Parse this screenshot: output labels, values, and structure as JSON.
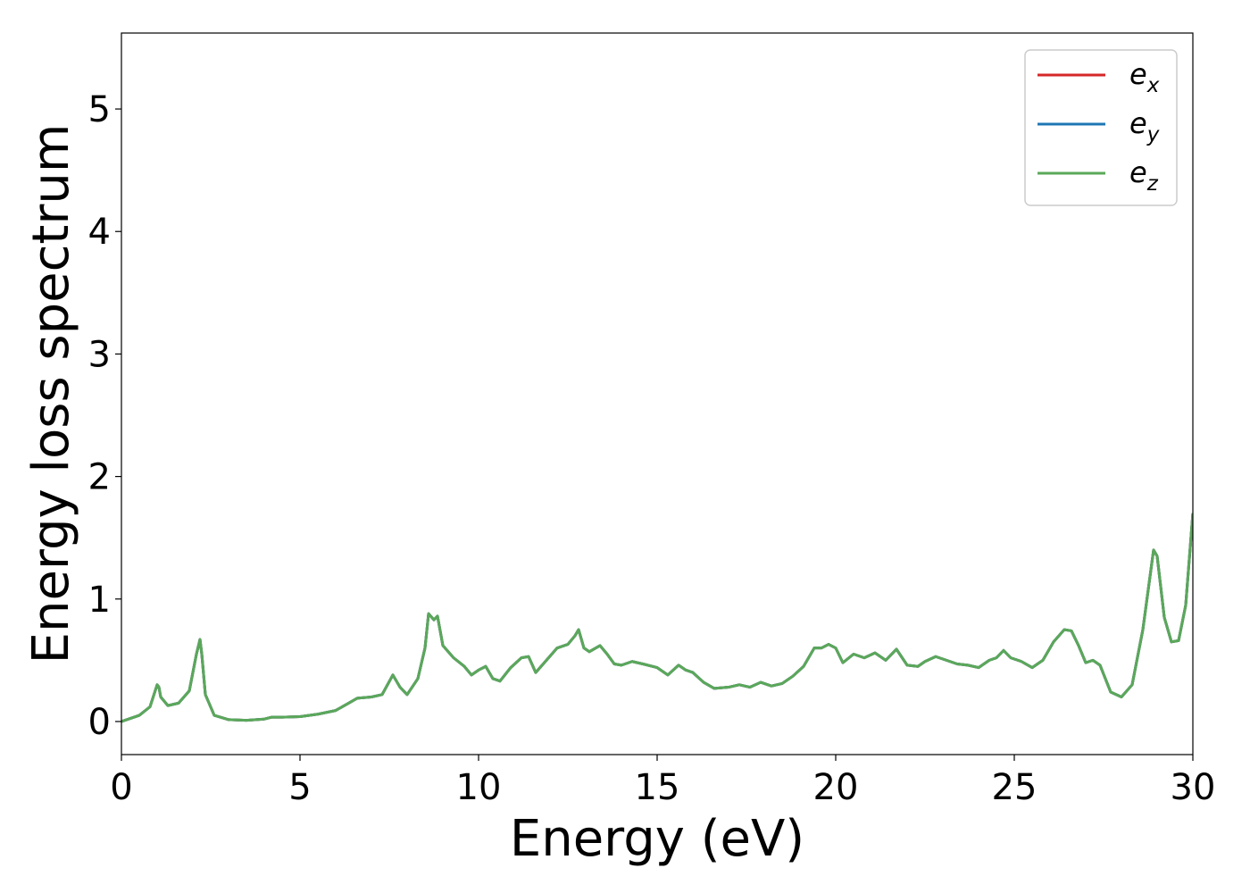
{
  "chart_data": {
    "type": "line",
    "title": "",
    "xlabel": "Energy (eV)",
    "ylabel": "Energy loss spectrum",
    "xlim": [
      0,
      30
    ],
    "ylim": [
      -0.27,
      5.62
    ],
    "xticks": [
      0,
      5,
      10,
      15,
      20,
      25,
      30
    ],
    "yticks": [
      0,
      1,
      2,
      3,
      4,
      5
    ],
    "grid": false,
    "legend_position": "top-right",
    "x": [
      0,
      0.5,
      0.8,
      1.0,
      1.05,
      1.1,
      1.3,
      1.6,
      1.9,
      2.1,
      2.2,
      2.25,
      2.35,
      2.6,
      3.0,
      3.5,
      4.0,
      4.2,
      4.5,
      5.0,
      5.5,
      6.0,
      6.3,
      6.6,
      7.0,
      7.3,
      7.6,
      7.8,
      8.0,
      8.3,
      8.5,
      8.6,
      8.75,
      8.85,
      9.0,
      9.3,
      9.6,
      9.8,
      10.0,
      10.2,
      10.4,
      10.6,
      10.9,
      11.2,
      11.4,
      11.6,
      11.9,
      12.2,
      12.5,
      12.7,
      12.8,
      12.95,
      13.1,
      13.4,
      13.6,
      13.8,
      14.0,
      14.3,
      14.6,
      15.0,
      15.3,
      15.6,
      15.8,
      16.0,
      16.3,
      16.6,
      17.0,
      17.3,
      17.6,
      17.9,
      18.2,
      18.5,
      18.8,
      19.1,
      19.4,
      19.6,
      19.8,
      20.0,
      20.2,
      20.5,
      20.8,
      21.1,
      21.4,
      21.7,
      22.0,
      22.3,
      22.5,
      22.8,
      23.1,
      23.4,
      23.7,
      24.0,
      24.3,
      24.5,
      24.7,
      24.9,
      25.2,
      25.5,
      25.8,
      26.1,
      26.4,
      26.6,
      26.8,
      27.0,
      27.2,
      27.4,
      27.7,
      28.0,
      28.3,
      28.6,
      28.9,
      29.0,
      29.2,
      29.4,
      29.6,
      29.8,
      30.0
    ],
    "series": [
      {
        "name": "e_x",
        "label_base": "e",
        "label_sub": "x",
        "color": "#d62728",
        "values": [
          0.0,
          0.05,
          0.12,
          0.3,
          0.28,
          0.2,
          0.13,
          0.15,
          0.25,
          0.55,
          0.67,
          0.55,
          0.22,
          0.05,
          0.015,
          0.01,
          0.02,
          0.035,
          0.035,
          0.04,
          0.06,
          0.09,
          0.14,
          0.19,
          0.2,
          0.22,
          0.38,
          0.28,
          0.22,
          0.35,
          0.6,
          0.88,
          0.83,
          0.86,
          0.62,
          0.52,
          0.45,
          0.38,
          0.42,
          0.45,
          0.35,
          0.33,
          0.44,
          0.52,
          0.53,
          0.4,
          0.5,
          0.6,
          0.63,
          0.7,
          0.75,
          0.6,
          0.57,
          0.62,
          0.55,
          0.47,
          0.46,
          0.49,
          0.47,
          0.44,
          0.38,
          0.46,
          0.42,
          0.4,
          0.32,
          0.27,
          0.28,
          0.3,
          0.28,
          0.32,
          0.29,
          0.31,
          0.37,
          0.45,
          0.6,
          0.6,
          0.63,
          0.6,
          0.48,
          0.55,
          0.52,
          0.56,
          0.5,
          0.59,
          0.46,
          0.45,
          0.49,
          0.53,
          0.5,
          0.47,
          0.46,
          0.44,
          0.5,
          0.52,
          0.58,
          0.52,
          0.49,
          0.44,
          0.5,
          0.65,
          0.75,
          0.74,
          0.62,
          0.48,
          0.5,
          0.46,
          0.24,
          0.2,
          0.3,
          0.75,
          1.4,
          1.35,
          0.85,
          0.65,
          0.66,
          0.95,
          1.7
        ]
      },
      {
        "name": "e_y",
        "label_base": "e",
        "label_sub": "y",
        "color": "#1f77b4",
        "values": [
          0.0,
          0.05,
          0.12,
          0.3,
          0.28,
          0.2,
          0.13,
          0.15,
          0.25,
          0.55,
          0.67,
          0.55,
          0.22,
          0.05,
          0.015,
          0.01,
          0.02,
          0.035,
          0.035,
          0.04,
          0.06,
          0.09,
          0.14,
          0.19,
          0.2,
          0.22,
          0.38,
          0.28,
          0.22,
          0.35,
          0.6,
          0.88,
          0.83,
          0.86,
          0.62,
          0.52,
          0.45,
          0.38,
          0.42,
          0.45,
          0.35,
          0.33,
          0.44,
          0.52,
          0.53,
          0.4,
          0.5,
          0.6,
          0.63,
          0.7,
          0.75,
          0.6,
          0.57,
          0.62,
          0.55,
          0.47,
          0.46,
          0.49,
          0.47,
          0.44,
          0.38,
          0.46,
          0.42,
          0.4,
          0.32,
          0.27,
          0.28,
          0.3,
          0.28,
          0.32,
          0.29,
          0.31,
          0.37,
          0.45,
          0.6,
          0.6,
          0.63,
          0.6,
          0.48,
          0.55,
          0.52,
          0.56,
          0.5,
          0.59,
          0.46,
          0.45,
          0.49,
          0.53,
          0.5,
          0.47,
          0.46,
          0.44,
          0.5,
          0.52,
          0.58,
          0.52,
          0.49,
          0.44,
          0.5,
          0.65,
          0.75,
          0.74,
          0.62,
          0.48,
          0.5,
          0.46,
          0.24,
          0.2,
          0.3,
          0.75,
          1.4,
          1.35,
          0.85,
          0.65,
          0.66,
          0.95,
          1.7
        ]
      },
      {
        "name": "e_z",
        "label_base": "e",
        "label_sub": "z",
        "color": "#5aa85a",
        "values": [
          0.0,
          0.05,
          0.12,
          0.3,
          0.28,
          0.2,
          0.13,
          0.15,
          0.25,
          0.55,
          0.67,
          0.55,
          0.22,
          0.05,
          0.015,
          0.01,
          0.02,
          0.035,
          0.035,
          0.04,
          0.06,
          0.09,
          0.14,
          0.19,
          0.2,
          0.22,
          0.38,
          0.28,
          0.22,
          0.35,
          0.6,
          0.88,
          0.83,
          0.86,
          0.62,
          0.52,
          0.45,
          0.38,
          0.42,
          0.45,
          0.35,
          0.33,
          0.44,
          0.52,
          0.53,
          0.4,
          0.5,
          0.6,
          0.63,
          0.7,
          0.75,
          0.6,
          0.57,
          0.62,
          0.55,
          0.47,
          0.46,
          0.49,
          0.47,
          0.44,
          0.38,
          0.46,
          0.42,
          0.4,
          0.32,
          0.27,
          0.28,
          0.3,
          0.28,
          0.32,
          0.29,
          0.31,
          0.37,
          0.45,
          0.6,
          0.6,
          0.63,
          0.6,
          0.48,
          0.55,
          0.52,
          0.56,
          0.5,
          0.59,
          0.46,
          0.45,
          0.49,
          0.53,
          0.5,
          0.47,
          0.46,
          0.44,
          0.5,
          0.52,
          0.58,
          0.52,
          0.49,
          0.44,
          0.5,
          0.65,
          0.75,
          0.74,
          0.62,
          0.48,
          0.5,
          0.46,
          0.24,
          0.2,
          0.3,
          0.75,
          1.4,
          1.35,
          0.85,
          0.65,
          0.66,
          0.95,
          1.7
        ]
      }
    ]
  }
}
